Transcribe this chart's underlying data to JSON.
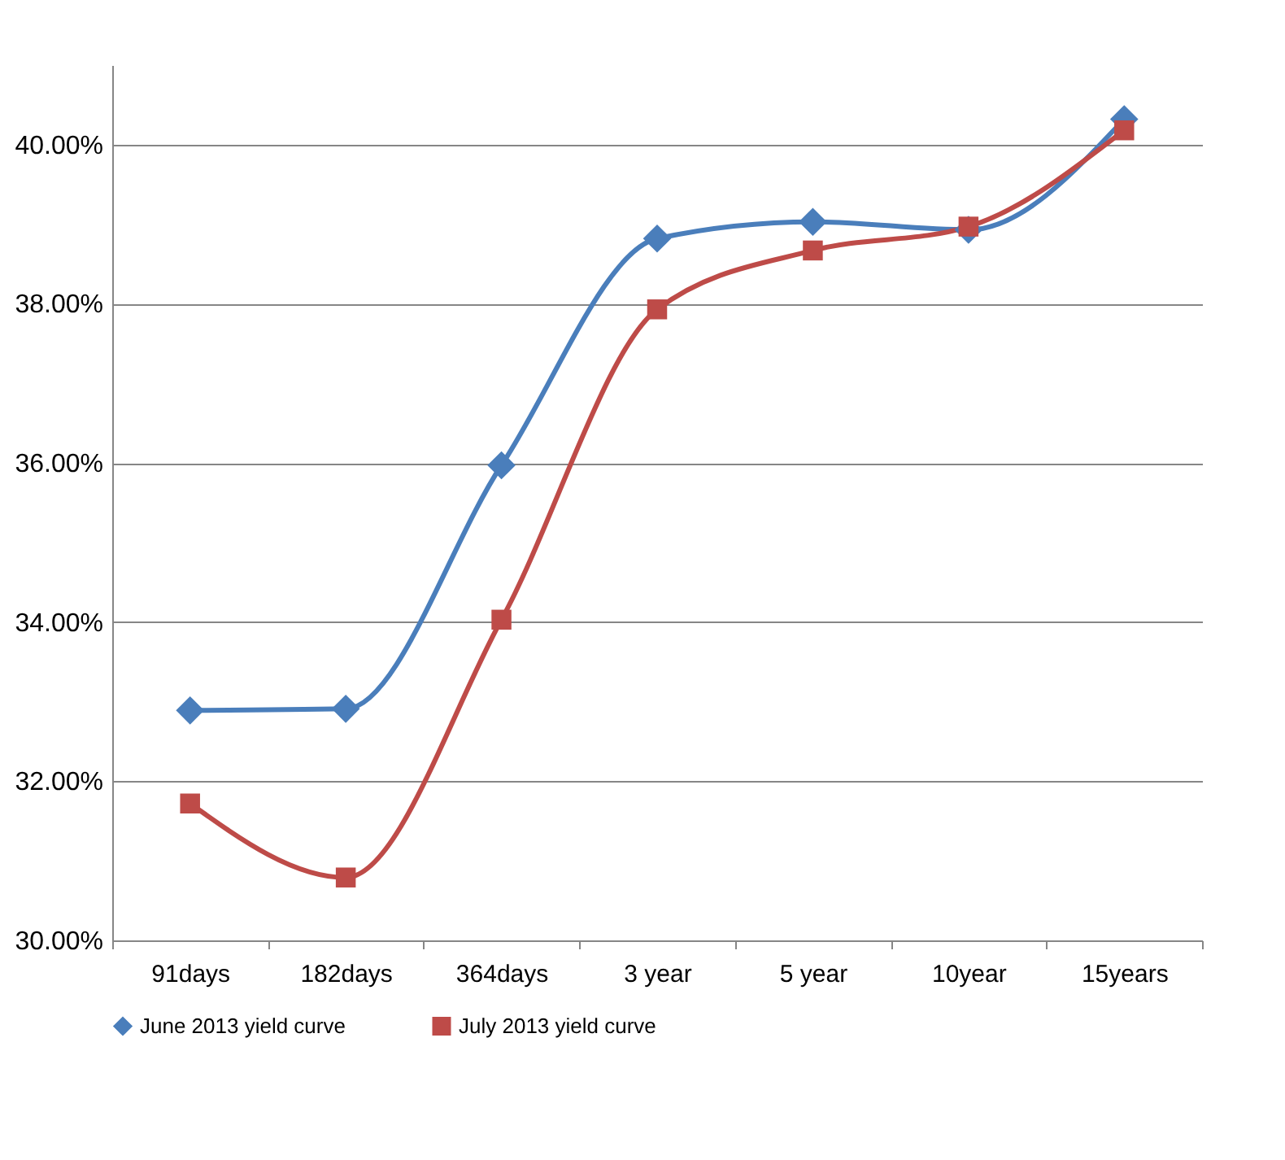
{
  "chart_data": {
    "type": "line",
    "categories": [
      "91days",
      "182days",
      "364days",
      "3 year",
      "5 year",
      "10year",
      "15years"
    ],
    "series": [
      {
        "name": "June 2013 yield curve",
        "color": "#4a7ebb",
        "marker": "diamond",
        "values": [
          32.89,
          32.91,
          35.97,
          38.82,
          39.03,
          38.93,
          40.32
        ]
      },
      {
        "name": "July 2013 yield curve",
        "color": "#be4b48",
        "marker": "square",
        "values": [
          31.72,
          30.79,
          34.03,
          37.93,
          38.67,
          38.97,
          40.18
        ]
      }
    ],
    "ylim": [
      30,
      41
    ],
    "yticks": [
      {
        "value": 30,
        "label": "30.00%"
      },
      {
        "value": 32,
        "label": "32.00%"
      },
      {
        "value": 34,
        "label": "34.00%"
      },
      {
        "value": 36,
        "label": "36.00%"
      },
      {
        "value": 38,
        "label": "38.00%"
      },
      {
        "value": 40,
        "label": "40.00%"
      }
    ],
    "grid": "y",
    "legend": "bottom",
    "line_style": "solid"
  }
}
